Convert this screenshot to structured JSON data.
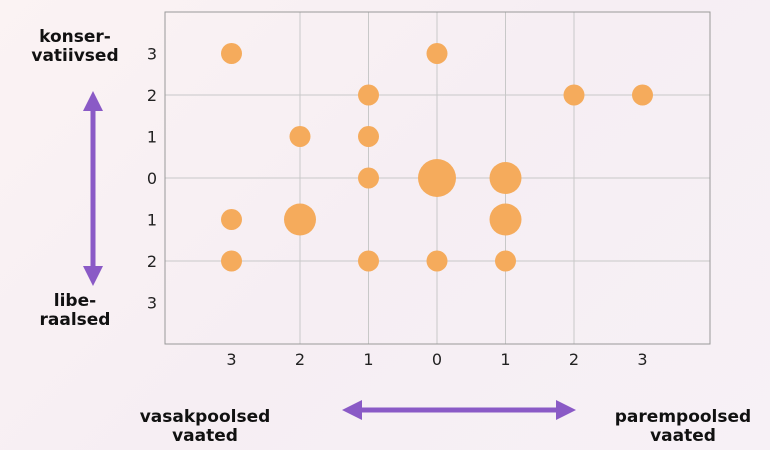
{
  "chart_data": {
    "type": "scatter",
    "x_tick_labels": [
      "3",
      "2",
      "1",
      "0",
      "1",
      "2",
      "3"
    ],
    "y_tick_labels": [
      "3",
      "2",
      "1",
      "0",
      "1",
      "2",
      "3"
    ],
    "xlim": [
      -4,
      4
    ],
    "ylim": [
      -4,
      4
    ],
    "grid": true,
    "points": [
      {
        "x": -3,
        "y": 3,
        "size": 1
      },
      {
        "x": 0,
        "y": 3,
        "size": 1
      },
      {
        "x": -1,
        "y": 2,
        "size": 1
      },
      {
        "x": 2,
        "y": 2,
        "size": 1
      },
      {
        "x": 3,
        "y": 2,
        "size": 1
      },
      {
        "x": -2,
        "y": 1,
        "size": 1
      },
      {
        "x": -1,
        "y": 1,
        "size": 1
      },
      {
        "x": -1,
        "y": 0,
        "size": 1
      },
      {
        "x": 0,
        "y": 0,
        "size": 3
      },
      {
        "x": 1,
        "y": 0,
        "size": 2
      },
      {
        "x": -3,
        "y": -1,
        "size": 1
      },
      {
        "x": -2,
        "y": -1,
        "size": 2
      },
      {
        "x": 1,
        "y": -1,
        "size": 2
      },
      {
        "x": -3,
        "y": -2,
        "size": 1
      },
      {
        "x": -1,
        "y": -2,
        "size": 1
      },
      {
        "x": 0,
        "y": -2,
        "size": 1
      },
      {
        "x": 1,
        "y": -2,
        "size": 1
      }
    ]
  },
  "labels": {
    "conservative": "konser-\nvatiivsed",
    "liberal": "libe-\nraalsed",
    "left": "vasakpoolsed\nvaated",
    "right": "parempoolsed\nvaated"
  },
  "colors": {
    "point": "#f5ab5c",
    "arrow": "#8a5ac6",
    "grid": "#c8c8c8",
    "axis": "#999999"
  }
}
